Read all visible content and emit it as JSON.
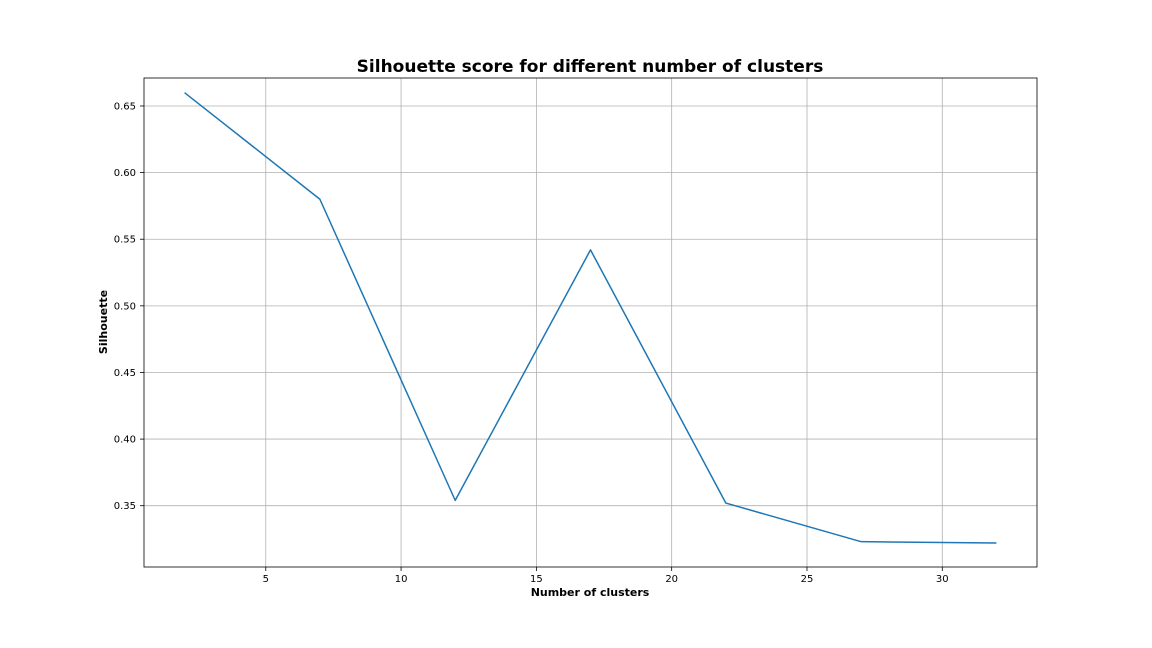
{
  "chart_data": {
    "type": "line",
    "title": "Silhouette score for different number of clusters",
    "xlabel": "Number of clusters",
    "ylabel": "Silhouette",
    "xlim": [
      0.5,
      33.5
    ],
    "ylim": [
      0.304,
      0.671
    ],
    "xticks": [
      5,
      10,
      15,
      20,
      25,
      30
    ],
    "yticks": [
      0.35,
      0.4,
      0.45,
      0.5,
      0.55,
      0.6,
      0.65
    ],
    "ytick_labels": [
      "0.35",
      "0.40",
      "0.45",
      "0.50",
      "0.55",
      "0.60",
      "0.65"
    ],
    "grid": true,
    "series": [
      {
        "x": [
          2,
          7,
          12,
          17,
          22,
          27,
          32
        ],
        "values": [
          0.66,
          0.58,
          0.354,
          0.542,
          0.352,
          0.323,
          0.322
        ],
        "color": "#1f77b4"
      }
    ]
  }
}
